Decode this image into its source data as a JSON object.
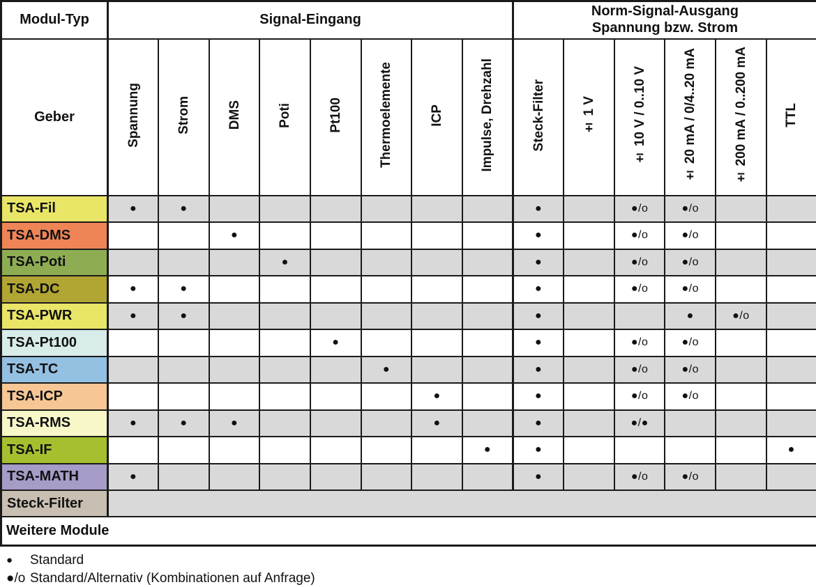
{
  "colors": {
    "grid_line": "#1a1a1a",
    "zebra_gray": "#d9d9d9",
    "zebra_white": "#ffffff",
    "steck_filter_label": "#c8beb2"
  },
  "table": {
    "header1": {
      "modul_typ": "Modul-Typ",
      "signal_eingang": "Signal-Eingang",
      "norm_signal_line1": "Norm-Signal-Ausgang",
      "norm_signal_line2": "Spannung bzw. Strom"
    },
    "geber_label": "Geber",
    "input_columns": [
      "Spannung",
      "Strom",
      "DMS",
      "Poti",
      "Pt100",
      "Thermoelemente",
      "ICP",
      "Impulse, Drehzahl"
    ],
    "output_columns": [
      "Steck-Filter",
      "± 1 V",
      "± 10 V / 0..10 V",
      "± 20 mA / 0/4..20 mA",
      "± 200 mA / 0..200 mA",
      "TTL"
    ],
    "symbols": {
      "standard": "●",
      "standard_alternativ": "●/o",
      "standard_standard": "●/●"
    },
    "rows": [
      {
        "label": "TSA-Fil",
        "label_color": "#e9e566",
        "zebra": "gray",
        "cells": [
          "●",
          "●",
          "",
          "",
          "",
          "",
          "",
          "",
          "●",
          "",
          "●/o",
          "●/o",
          "",
          ""
        ]
      },
      {
        "label": "TSA-DMS",
        "label_color": "#ef8456",
        "zebra": "white",
        "cells": [
          "",
          "",
          "●",
          "",
          "",
          "",
          "",
          "",
          "●",
          "",
          "●/o",
          "●/o",
          "",
          ""
        ]
      },
      {
        "label": "TSA-Poti",
        "label_color": "#8ead53",
        "zebra": "gray",
        "cells": [
          "",
          "",
          "",
          "●",
          "",
          "",
          "",
          "",
          "●",
          "",
          "●/o",
          "●/o",
          "",
          ""
        ]
      },
      {
        "label": "TSA-DC",
        "label_color": "#b1a533",
        "zebra": "white",
        "cells": [
          "●",
          "●",
          "",
          "",
          "",
          "",
          "",
          "",
          "●",
          "",
          "●/o",
          "●/o",
          "",
          ""
        ]
      },
      {
        "label": "TSA-PWR",
        "label_color": "#e9e566",
        "zebra": "gray",
        "cells": [
          "●",
          "●",
          "",
          "",
          "",
          "",
          "",
          "",
          "●",
          "",
          "",
          "●",
          "●/o",
          ""
        ]
      },
      {
        "label": "TSA-Pt100",
        "label_color": "#d8ecea",
        "zebra": "white",
        "cells": [
          "",
          "",
          "",
          "",
          "●",
          "",
          "",
          "",
          "●",
          "",
          "●/o",
          "●/o",
          "",
          ""
        ]
      },
      {
        "label": "TSA-TC",
        "label_color": "#94c0e2",
        "zebra": "gray",
        "cells": [
          "",
          "",
          "",
          "",
          "",
          "●",
          "",
          "",
          "●",
          "",
          "●/o",
          "●/o",
          "",
          ""
        ]
      },
      {
        "label": "TSA-ICP",
        "label_color": "#f6c795",
        "zebra": "white",
        "cells": [
          "",
          "",
          "",
          "",
          "",
          "",
          "●",
          "",
          "●",
          "",
          "●/o",
          "●/o",
          "",
          ""
        ]
      },
      {
        "label": "TSA-RMS",
        "label_color": "#f7f7c8",
        "zebra": "gray",
        "cells": [
          "●",
          "●",
          "●",
          "",
          "",
          "",
          "●",
          "",
          "●",
          "",
          "●/●",
          "",
          "",
          ""
        ]
      },
      {
        "label": "TSA-IF",
        "label_color": "#a4c02f",
        "zebra": "white",
        "cells": [
          "",
          "",
          "",
          "",
          "",
          "",
          "",
          "●",
          "●",
          "",
          "",
          "",
          "",
          "●"
        ]
      },
      {
        "label": "TSA-MATH",
        "label_color": "#a79bc7",
        "zebra": "gray",
        "cells": [
          "●",
          "",
          "",
          "",
          "",
          "",
          "",
          "",
          "●",
          "",
          "●/o",
          "●/o",
          "",
          ""
        ]
      }
    ],
    "steck_filter_row": {
      "label": "Steck-Filter",
      "label_color": "#c8beb2"
    },
    "weitere_row": {
      "label": "Weitere Module"
    }
  },
  "legend": {
    "items": [
      {
        "symbol": "●",
        "text": "Standard"
      },
      {
        "symbol": "●/o",
        "text": "Standard/Alternativ (Kombinationen auf Anfrage)"
      }
    ]
  }
}
